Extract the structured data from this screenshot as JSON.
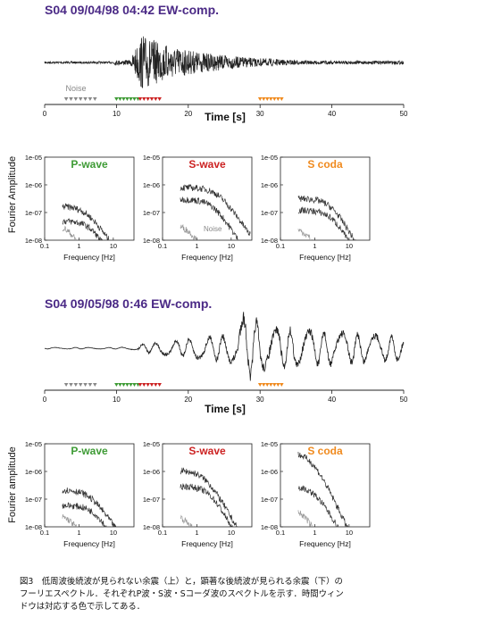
{
  "figure": {
    "events": [
      {
        "title": "S04  09/04/98 04:42  EW-comp.",
        "noise_label": "Noise"
      },
      {
        "title": "S04  09/05/98  0:46  EW-comp."
      }
    ],
    "time_axis": {
      "label": "Time  [s]",
      "ticks": [
        "0",
        "10",
        "20",
        "30",
        "40",
        "50"
      ]
    },
    "spectra_ylabels": [
      "Fourier Amplitude",
      "Fourier amplitude"
    ],
    "panel_titles": [
      "P-wave",
      "S-wave",
      "S coda"
    ],
    "ytick_labels": [
      "1e-05",
      "1e-06",
      "1e-07",
      "1e-08"
    ],
    "xtick_labels": [
      "0.1",
      "1",
      "10"
    ],
    "freq_label": "Frequency [Hz]",
    "noise_annot": "Noise",
    "colors": {
      "title": "#4b2a86",
      "p": "#3e9b35",
      "s": "#cc2222",
      "coda": "#f08a1e",
      "noise": "#888888"
    }
  },
  "caption": {
    "lines": [
      "図3　低周波後続波が見られない余震（上）と，顕著な後続波が見られる余震（下）の",
      "フーリエスペクトル．それぞれP波・S波・Sコーダ波のスペクトルを示す．時間ウィン",
      "ドウは対応する色で示してある．"
    ]
  },
  "chart_data": [
    {
      "type": "line",
      "title": "S04  09/04/98 04:42  EW-comp.",
      "xlabel": "Time  [s]",
      "xlim": [
        0,
        50
      ],
      "windows": [
        {
          "name": "Noise",
          "x": [
            3,
            7
          ]
        },
        {
          "name": "P-wave",
          "x": [
            10,
            13
          ]
        },
        {
          "name": "S-wave",
          "x": [
            13,
            16
          ]
        },
        {
          "name": "S coda",
          "x": [
            30,
            33
          ]
        }
      ]
    },
    {
      "type": "line",
      "panel": "P-wave",
      "event": 1,
      "xlabel": "Frequency [Hz]",
      "ylabel": "Fourier Amplitude",
      "xscale": "log",
      "yscale": "log",
      "xlim": [
        0.1,
        40
      ],
      "ylim": [
        1e-08,
        1e-05
      ]
    },
    {
      "type": "line",
      "panel": "S-wave",
      "event": 1,
      "xlabel": "Frequency [Hz]",
      "xscale": "log",
      "yscale": "log",
      "xlim": [
        0.1,
        40
      ],
      "ylim": [
        1e-08,
        1e-05
      ],
      "annotation": "Noise"
    },
    {
      "type": "line",
      "panel": "S coda",
      "event": 1,
      "xlabel": "Frequency [Hz]",
      "xscale": "log",
      "yscale": "log",
      "xlim": [
        0.1,
        40
      ],
      "ylim": [
        1e-08,
        1e-05
      ]
    },
    {
      "type": "line",
      "title": "S04  09/05/98  0:46  EW-comp.",
      "xlabel": "Time  [s]",
      "xlim": [
        0,
        50
      ],
      "windows": [
        {
          "name": "Noise",
          "x": [
            3,
            7
          ]
        },
        {
          "name": "P-wave",
          "x": [
            10,
            13
          ]
        },
        {
          "name": "S-wave",
          "x": [
            13,
            16
          ]
        },
        {
          "name": "S coda",
          "x": [
            30,
            33
          ]
        }
      ]
    },
    {
      "type": "line",
      "panel": "P-wave",
      "event": 2,
      "xlabel": "Frequency [Hz]",
      "ylabel": "Fourier amplitude",
      "xscale": "log",
      "yscale": "log",
      "xlim": [
        0.1,
        40
      ],
      "ylim": [
        1e-08,
        1e-05
      ]
    },
    {
      "type": "line",
      "panel": "S-wave",
      "event": 2,
      "xlabel": "Frequency [Hz]",
      "xscale": "log",
      "yscale": "log",
      "xlim": [
        0.1,
        40
      ],
      "ylim": [
        1e-08,
        1e-05
      ]
    },
    {
      "type": "line",
      "panel": "S coda",
      "event": 2,
      "xlabel": "Frequency [Hz]",
      "xscale": "log",
      "yscale": "log",
      "xlim": [
        0.1,
        40
      ],
      "ylim": [
        1e-08,
        1e-05
      ]
    }
  ]
}
